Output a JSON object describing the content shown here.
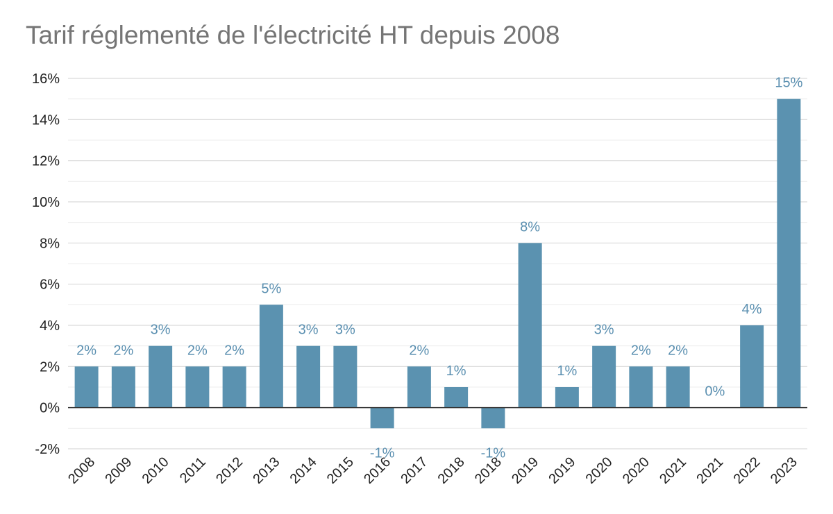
{
  "chart_data": {
    "type": "bar",
    "title": "Tarif réglementé de l'électricité HT depuis 2008",
    "xlabel": "",
    "ylabel": "",
    "categories": [
      "2008",
      "2009",
      "2010",
      "2011",
      "2012",
      "2013",
      "2014",
      "2015",
      "2016",
      "2017",
      "2018",
      "2018",
      "2019",
      "2019",
      "2020",
      "2020",
      "2021",
      "2021",
      "2022",
      "2023"
    ],
    "values": [
      2,
      2,
      3,
      2,
      2,
      5,
      3,
      3,
      -1,
      2,
      1,
      -1,
      8,
      1,
      3,
      2,
      2,
      0,
      4,
      15
    ],
    "value_labels": [
      "2%",
      "2%",
      "3%",
      "2%",
      "2%",
      "5%",
      "3%",
      "3%",
      "-1%",
      "2%",
      "1%",
      "-1%",
      "8%",
      "1%",
      "3%",
      "2%",
      "2%",
      "0%",
      "4%",
      "15%"
    ],
    "ylim": [
      -2,
      16
    ],
    "y_ticks": [
      {
        "value": 16,
        "label": "16%"
      },
      {
        "value": 14,
        "label": "14%"
      },
      {
        "value": 12,
        "label": "12%"
      },
      {
        "value": 10,
        "label": "10%"
      },
      {
        "value": 8,
        "label": "8%"
      },
      {
        "value": 6,
        "label": "6%"
      },
      {
        "value": 4,
        "label": "4%"
      },
      {
        "value": 2,
        "label": "2%"
      },
      {
        "value": 0,
        "label": "0%"
      },
      {
        "value": -2,
        "label": "-2%"
      }
    ],
    "grid": true,
    "legend": "none",
    "colors": {
      "bar": "#5b92b0",
      "data_label": "#5a8fb0",
      "grid": "#d9d9d9",
      "axis": "#333333",
      "title": "#757575"
    }
  }
}
